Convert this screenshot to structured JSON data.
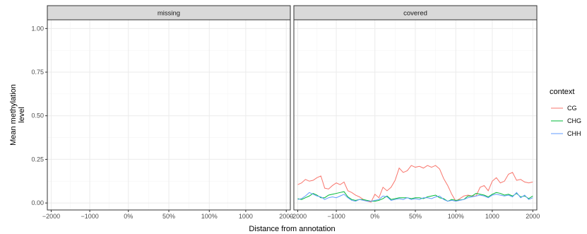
{
  "chart_data": {
    "type": "line",
    "xlabel": "Distance from annotation",
    "ylabel": [
      "Mean methylation",
      "level"
    ],
    "y_ticks": [
      0,
      0.25,
      0.5,
      0.75,
      1
    ],
    "y_tick_labels": [
      "0.00",
      "0.25",
      "0.50",
      "0.75",
      "1.00"
    ],
    "x_ticks": [
      -2000,
      -1000,
      0,
      50,
      100,
      1000,
      2000
    ],
    "x_tick_labels": [
      "−2000",
      "−1000",
      "0%",
      "50%",
      "100%",
      "1000",
      "2000"
    ],
    "ylim": [
      -0.04,
      1.05
    ],
    "grid": true,
    "legend": {
      "title": "context",
      "position": "right",
      "entries": [
        {
          "label": "CG",
          "color": "#F8766D"
        },
        {
          "label": "CHG",
          "color": "#00BA38"
        },
        {
          "label": "CHH",
          "color": "#619CFF"
        }
      ]
    },
    "panels": [
      {
        "strip": "missing",
        "series": []
      },
      {
        "strip": "covered",
        "series": [
          {
            "name": "CG",
            "color": "#F8766D",
            "x": [
              -2000,
              -1900,
              -1800,
              -1700,
              -1600,
              -1500,
              -1400,
              -1300,
              -1200,
              -1100,
              -1000,
              -900,
              -800,
              -700,
              -600,
              -500,
              -400,
              -300,
              -200,
              -100,
              0,
              5,
              10,
              15,
              20,
              25,
              30,
              35,
              40,
              45,
              50,
              55,
              60,
              65,
              70,
              75,
              80,
              85,
              90,
              95,
              100,
              200,
              300,
              400,
              500,
              600,
              700,
              800,
              900,
              1000,
              1100,
              1200,
              1300,
              1400,
              1500,
              1600,
              1700,
              1800,
              1900
            ],
            "y": [
              0.105,
              0.115,
              0.135,
              0.125,
              0.13,
              0.145,
              0.155,
              0.085,
              0.08,
              0.1,
              0.115,
              0.105,
              0.12,
              0.07,
              0.06,
              0.045,
              0.035,
              0.02,
              0.01,
              0.005,
              0.05,
              0.03,
              0.09,
              0.07,
              0.09,
              0.13,
              0.2,
              0.175,
              0.185,
              0.215,
              0.205,
              0.21,
              0.2,
              0.215,
              0.205,
              0.215,
              0.195,
              0.14,
              0.1,
              0.05,
              0.01,
              0.04,
              0.045,
              0.04,
              0.04,
              0.09,
              0.1,
              0.07,
              0.125,
              0.145,
              0.115,
              0.125,
              0.165,
              0.175,
              0.13,
              0.135,
              0.12,
              0.115,
              0.12
            ]
          },
          {
            "name": "CHG",
            "color": "#00BA38",
            "x": [
              -2000,
              -1900,
              -1800,
              -1700,
              -1600,
              -1500,
              -1400,
              -1300,
              -1200,
              -1100,
              -1000,
              -900,
              -800,
              -700,
              -600,
              -500,
              -400,
              -300,
              -200,
              -100,
              0,
              5,
              10,
              15,
              20,
              25,
              30,
              35,
              40,
              45,
              50,
              55,
              60,
              65,
              70,
              75,
              80,
              85,
              90,
              95,
              100,
              200,
              300,
              400,
              500,
              600,
              700,
              800,
              900,
              1000,
              1100,
              1200,
              1300,
              1400,
              1500,
              1600,
              1700,
              1800,
              1900
            ],
            "y": [
              0.025,
              0.02,
              0.03,
              0.04,
              0.055,
              0.045,
              0.03,
              0.03,
              0.045,
              0.05,
              0.055,
              0.06,
              0.065,
              0.035,
              0.02,
              0.015,
              0.02,
              0.02,
              0.015,
              0.01,
              0.01,
              0.015,
              0.025,
              0.04,
              0.02,
              0.025,
              0.03,
              0.03,
              0.03,
              0.025,
              0.03,
              0.03,
              0.025,
              0.035,
              0.04,
              0.045,
              0.03,
              0.025,
              0.01,
              0.02,
              0.015,
              0.02,
              0.04,
              0.04,
              0.055,
              0.05,
              0.045,
              0.035,
              0.05,
              0.06,
              0.055,
              0.045,
              0.05,
              0.04,
              0.055,
              0.035,
              0.04,
              0.025,
              0.04
            ]
          },
          {
            "name": "CHH",
            "color": "#619CFF",
            "x": [
              -2000,
              -1900,
              -1800,
              -1700,
              -1600,
              -1500,
              -1400,
              -1300,
              -1200,
              -1100,
              -1000,
              -900,
              -800,
              -700,
              -600,
              -500,
              -400,
              -300,
              -200,
              -100,
              0,
              5,
              10,
              15,
              20,
              25,
              30,
              35,
              40,
              45,
              50,
              55,
              60,
              65,
              70,
              75,
              80,
              85,
              90,
              95,
              100,
              200,
              300,
              400,
              500,
              600,
              700,
              800,
              900,
              1000,
              1100,
              1200,
              1300,
              1400,
              1500,
              1600,
              1700,
              1800,
              1900
            ],
            "y": [
              0.02,
              0.025,
              0.04,
              0.06,
              0.05,
              0.04,
              0.035,
              0.02,
              0.03,
              0.035,
              0.03,
              0.04,
              0.05,
              0.03,
              0.015,
              0.01,
              0.02,
              0.015,
              0.01,
              0.01,
              0.015,
              0.02,
              0.04,
              0.035,
              0.015,
              0.02,
              0.025,
              0.02,
              0.03,
              0.02,
              0.025,
              0.02,
              0.03,
              0.03,
              0.025,
              0.035,
              0.04,
              0.02,
              0.01,
              0.015,
              0.01,
              0.02,
              0.03,
              0.035,
              0.04,
              0.045,
              0.04,
              0.03,
              0.045,
              0.05,
              0.045,
              0.04,
              0.045,
              0.035,
              0.06,
              0.03,
              0.045,
              0.02,
              0.03
            ]
          }
        ]
      }
    ]
  }
}
